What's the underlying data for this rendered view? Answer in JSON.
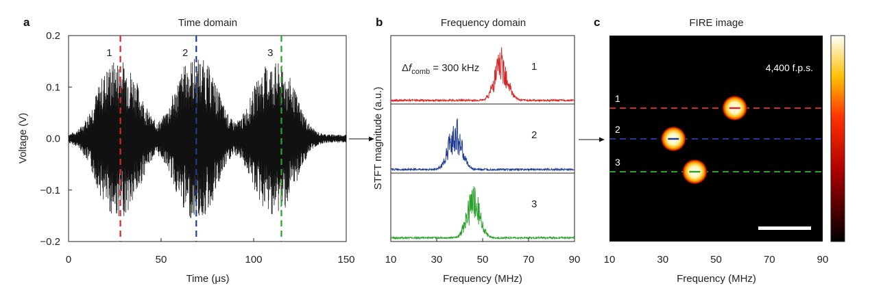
{
  "chart_data": [
    {
      "panel_label": "a",
      "title": "Time domain",
      "type": "line",
      "xlabel": "Time (μs)",
      "ylabel": "Voltage (V)",
      "xlim": [
        0,
        150
      ],
      "ylim": [
        -0.2,
        0.2
      ],
      "xticks": [
        "0",
        "50",
        "100",
        "150"
      ],
      "yticks": [
        "−0.2",
        "−0.1",
        "0.0",
        "0.1",
        "0.2"
      ],
      "envelope": {
        "description_units": "x in μs, amplitude in V",
        "bursts": [
          {
            "center": 27,
            "width": 15,
            "peak": 0.145
          },
          {
            "center": 69,
            "width": 15,
            "peak": 0.15
          },
          {
            "center": 111,
            "width": 15,
            "peak": 0.14
          }
        ],
        "baseline_noise": 0.008
      },
      "markers": [
        {
          "label": "1",
          "x": 28,
          "color": "#d62728"
        },
        {
          "label": "2",
          "x": 69,
          "color": "#1f3a93"
        },
        {
          "label": "3",
          "x": 115,
          "color": "#2ca02c"
        }
      ]
    },
    {
      "panel_label": "b",
      "title": "Frequency domain",
      "type": "line",
      "xlabel": "Frequency (MHz)",
      "ylabel": "STFT magnitude (a.u.)",
      "xlim": [
        10,
        90
      ],
      "xticks": [
        "10",
        "30",
        "50",
        "70",
        "90"
      ],
      "annotation": {
        "prefix": "Δ",
        "var": "f",
        "sub": "comb",
        "suffix": " = 300 kHz"
      },
      "series": [
        {
          "name": "1",
          "color": "#d62728",
          "center": 58,
          "width": 5,
          "peak": 1.0
        },
        {
          "name": "2",
          "color": "#1f3a93",
          "center": 38,
          "width": 5,
          "peak": 1.0
        },
        {
          "name": "3",
          "color": "#2ca02c",
          "center": 46,
          "width": 5,
          "peak": 1.0
        }
      ]
    },
    {
      "panel_label": "c",
      "title": "FIRE image",
      "type": "heatmap",
      "xlabel": "Frequency (MHz)",
      "xlim": [
        10,
        90
      ],
      "xticks": [
        "10",
        "30",
        "50",
        "70",
        "90"
      ],
      "frame_rate": "4,400 f.p.s.",
      "spots": [
        {
          "label": "1",
          "x": 57,
          "row": 1,
          "color": "#d62728"
        },
        {
          "label": "2",
          "x": 34,
          "row": 2,
          "color": "#1f3a93"
        },
        {
          "label": "3",
          "x": 42,
          "row": 3,
          "color": "#2ca02c"
        }
      ],
      "colorbar": "hot"
    }
  ],
  "arrows": [
    "a-to-b",
    "b-to-c"
  ]
}
